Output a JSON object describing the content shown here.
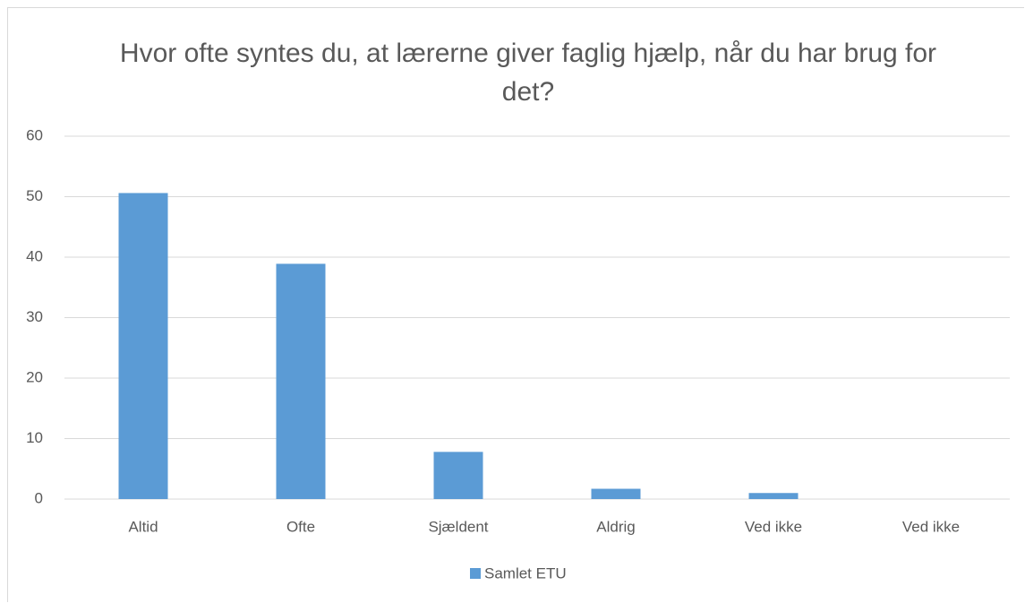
{
  "chart_data": {
    "type": "bar",
    "title": "Hvor ofte syntes du, at lærerne giver faglig hjælp, når du har brug for det?",
    "categories": [
      "Altid",
      "Ofte",
      "Sjældent",
      "Aldrig",
      "Ved ikke",
      "Ved ikke"
    ],
    "series": [
      {
        "name": "Samlet ETU",
        "color": "#5b9bd5",
        "values": [
          50.6,
          38.9,
          7.8,
          1.7,
          1.0,
          0
        ]
      }
    ],
    "ylim": [
      0,
      60
    ],
    "yticks": [
      0,
      10,
      20,
      30,
      40,
      50,
      60
    ],
    "grid": true,
    "legend": "bottom"
  }
}
